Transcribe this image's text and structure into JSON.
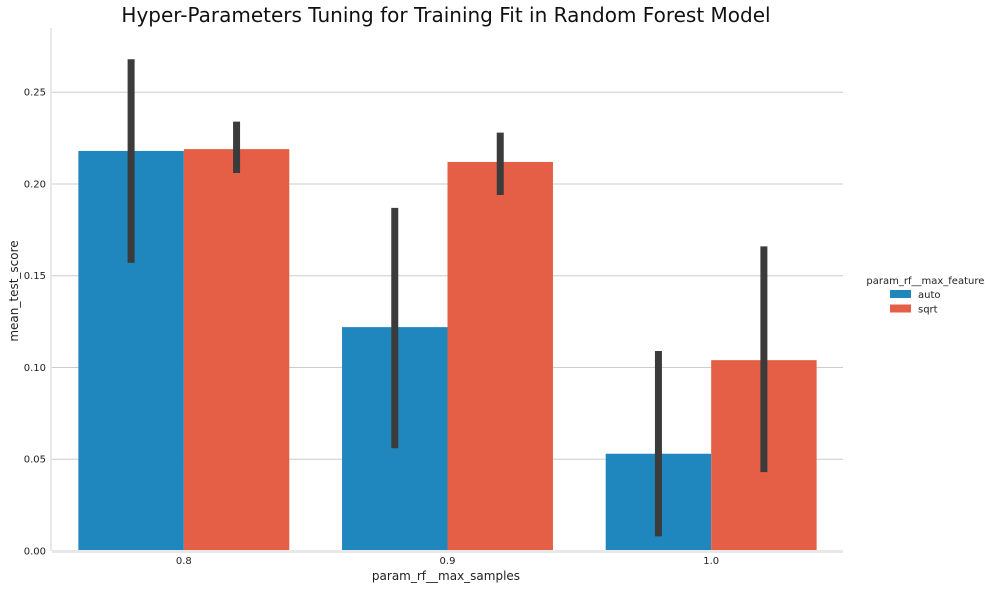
{
  "chart_data": {
    "type": "bar",
    "title": "Hyper-Parameters Tuning for Training Fit in Random Forest Model",
    "xlabel": "param_rf__max_samples",
    "ylabel": "mean_test_score",
    "categories": [
      "0.8",
      "0.9",
      "1.0"
    ],
    "ylim": [
      0,
      0.285
    ],
    "yticks": [
      "0.00",
      "0.05",
      "0.10",
      "0.15",
      "0.20",
      "0.25"
    ],
    "grid": "horizontal",
    "legend": {
      "title": "param_rf__max_features",
      "position": "right"
    },
    "series": [
      {
        "name": "auto",
        "color": "#1f87bd",
        "values": [
          0.218,
          0.122,
          0.053
        ],
        "ci": [
          [
            0.157,
            0.268
          ],
          [
            0.056,
            0.187
          ],
          [
            0.008,
            0.109
          ]
        ]
      },
      {
        "name": "sqrt",
        "color": "#e45f46",
        "values": [
          0.219,
          0.212,
          0.104
        ],
        "ci": [
          [
            0.206,
            0.234
          ],
          [
            0.194,
            0.228
          ],
          [
            0.043,
            0.166
          ]
        ]
      }
    ],
    "errorbar_color": "#3b3b3b"
  }
}
